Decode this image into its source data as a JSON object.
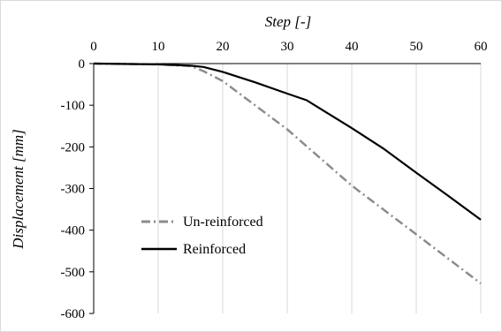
{
  "chart_data": {
    "type": "line",
    "xlabel": "Step [-]",
    "ylabel": "Displacement [mm]",
    "xlim": [
      0,
      60
    ],
    "ylim": [
      -600,
      0
    ],
    "x_ticks": [
      0,
      10,
      20,
      30,
      40,
      50,
      60
    ],
    "y_ticks": [
      0,
      -100,
      -200,
      -300,
      -400,
      -500,
      -600
    ],
    "x_axis_position": "top",
    "grid": "vertical",
    "legend_position": "bottom-left",
    "series": [
      {
        "name": "Un-reinforced",
        "style": "dash-dot",
        "color": "#8c8c8c",
        "x": [
          0,
          10,
          15,
          17,
          20,
          30,
          40,
          50,
          60
        ],
        "y": [
          0,
          -2,
          -6,
          -18,
          -42,
          -158,
          -293,
          -410,
          -528
        ]
      },
      {
        "name": "Reinforced",
        "style": "solid",
        "color": "#000000",
        "x": [
          0,
          10,
          15,
          17,
          20,
          25,
          30,
          33,
          40,
          45,
          50,
          55,
          60
        ],
        "y": [
          0,
          -2,
          -5,
          -8,
          -20,
          -45,
          -72,
          -88,
          -155,
          -205,
          -262,
          -318,
          -375
        ]
      }
    ]
  }
}
